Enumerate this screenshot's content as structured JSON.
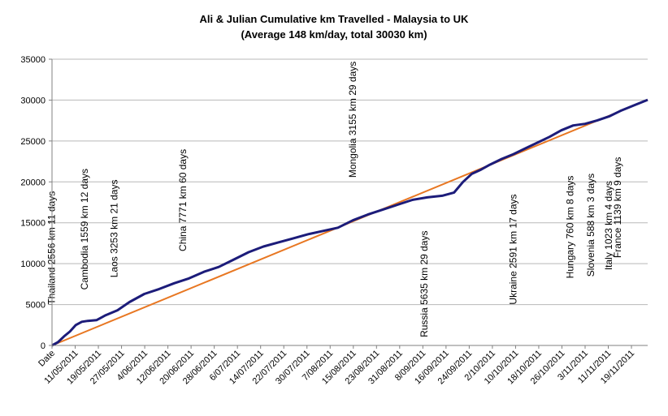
{
  "chart_data": {
    "type": "line",
    "title": "Ali & Julian Cumulative km  Travelled - Malaysia to UK",
    "subtitle": "(Average 148 km/day, total 30030 km)",
    "xlabel": "",
    "ylabel": "",
    "ylim": [
      0,
      35000
    ],
    "yticks": [
      "0",
      "5000",
      "10000",
      "15000",
      "20000",
      "25000",
      "30000",
      "35000"
    ],
    "xticks": [
      "Date",
      "11/05/2011",
      "19/05/2011",
      "27/05/2011",
      "4/06/2011",
      "12/06/2011",
      "20/06/2011",
      "28/06/2011",
      "6/07/2011",
      "14/07/2011",
      "22/07/2011",
      "30/07/2011",
      "7/08/2011",
      "15/08/2011",
      "23/08/2011",
      "31/08/2011",
      "8/09/2011",
      "16/09/2011",
      "24/09/2011",
      "2/10/2011",
      "10/10/2011",
      "18/10/2011",
      "26/10/2011",
      "3/11/2011",
      "11/11/2011",
      "19/11/2011"
    ],
    "grid": true,
    "legend": "none",
    "x_start": "2011-05-10",
    "x_end": "2011-11-26",
    "series": [
      {
        "color": "#1c1c7a",
        "x": [
          "2011-05-10",
          "2011-05-12",
          "2011-05-14",
          "2011-05-16",
          "2011-05-18",
          "2011-05-20",
          "2011-05-22",
          "2011-05-25",
          "2011-05-28",
          "2011-06-01",
          "2011-06-05",
          "2011-06-10",
          "2011-06-15",
          "2011-06-20",
          "2011-06-25",
          "2011-06-30",
          "2011-07-05",
          "2011-07-10",
          "2011-07-15",
          "2011-07-20",
          "2011-07-25",
          "2011-07-30",
          "2011-08-04",
          "2011-08-09",
          "2011-08-14",
          "2011-08-19",
          "2011-08-24",
          "2011-08-29",
          "2011-09-03",
          "2011-09-08",
          "2011-09-13",
          "2011-09-18",
          "2011-09-22",
          "2011-09-25",
          "2011-09-28",
          "2011-10-01",
          "2011-10-04",
          "2011-10-08",
          "2011-10-12",
          "2011-10-16",
          "2011-10-20",
          "2011-10-24",
          "2011-10-28",
          "2011-11-01",
          "2011-11-05",
          "2011-11-09",
          "2011-11-13",
          "2011-11-17",
          "2011-11-21",
          "2011-11-26"
        ],
        "values": [
          0,
          400,
          1100,
          1700,
          2500,
          2900,
          3000,
          3100,
          3700,
          4300,
          5300,
          6300,
          6900,
          7600,
          8200,
          9000,
          9600,
          10500,
          11400,
          12100,
          12600,
          13100,
          13600,
          14000,
          14400,
          15300,
          16000,
          16600,
          17200,
          17800,
          18100,
          18300,
          18700,
          20000,
          21000,
          21500,
          22100,
          22800,
          23400,
          24100,
          24800,
          25500,
          26300,
          26900,
          27100,
          27500,
          28000,
          28700,
          29300,
          30030
        ]
      },
      {
        "color": "#e87722",
        "x": [
          "2011-05-10",
          "2011-11-26"
        ],
        "values": [
          0,
          30030
        ]
      }
    ],
    "annotations": [
      {
        "text": "Thailand 2556 km 11 days",
        "x": "2011-05-11",
        "y": 5000
      },
      {
        "text": "Cambodia 1559 km 12 days",
        "x": "2011-05-22",
        "y": 6800
      },
      {
        "text": "Laos 3253 km 21 days",
        "x": "2011-06-01",
        "y": 8300
      },
      {
        "text": "China 7771 km 60 days",
        "x": "2011-06-24",
        "y": 11500
      },
      {
        "text": "Mongolia 3155 km 29 days",
        "x": "2011-08-20",
        "y": 20500
      },
      {
        "text": "Russia 5635 km 29 days",
        "x": "2011-09-13",
        "y": 1000
      },
      {
        "text": "Ukraine 2591 km 17 days",
        "x": "2011-10-13",
        "y": 5000
      },
      {
        "text": "Hungary 760 km 8 days",
        "x": "2011-11-01",
        "y": 8200
      },
      {
        "text": "Slovenia 588 km 3 days",
        "x": "2011-11-08",
        "y": 8400
      },
      {
        "text": "Italy 1023 km 4 days",
        "x": "2011-11-14",
        "y": 9200
      },
      {
        "text": "France 1139 km 9 days",
        "x": "2011-11-17",
        "y": 10700
      }
    ]
  }
}
